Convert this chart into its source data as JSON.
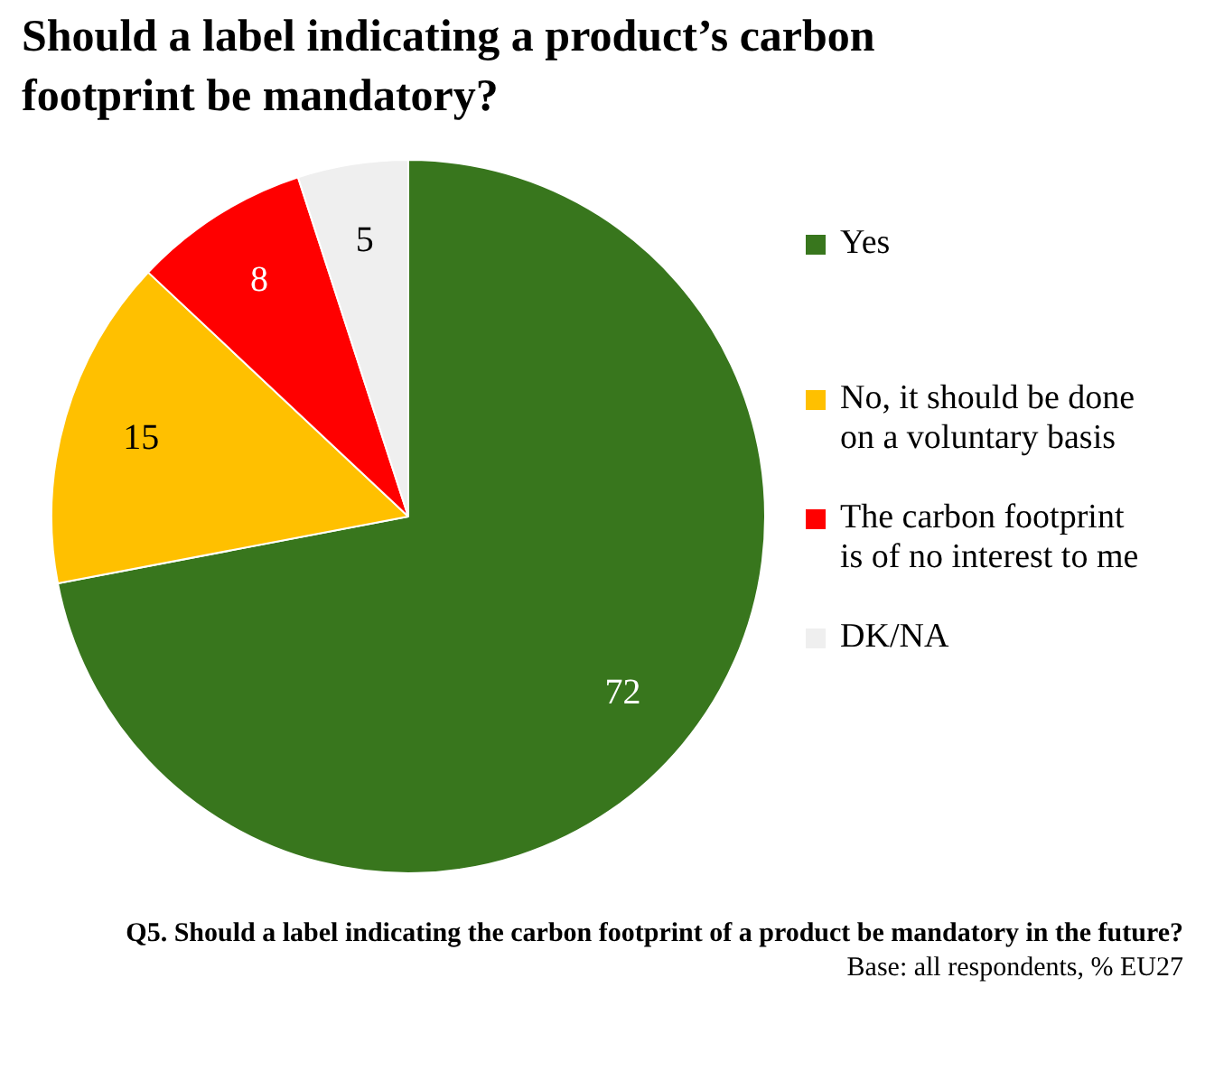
{
  "chart_data": {
    "type": "pie",
    "title": "Should a label indicating a product’s carbon footprint be mandatory?",
    "categories": [
      "Yes",
      "No, it should be done on a voluntary basis",
      "The carbon footprint is of no interest to me",
      "DK/NA"
    ],
    "values": [
      72,
      15,
      8,
      5
    ],
    "colors": [
      "#38761d",
      "#ffc000",
      "#ff0000",
      "#efefef"
    ],
    "data_labels": true,
    "legend": "right",
    "annotations": [
      "Q5. Should a label indicating the carbon footprint of a product be mandatory in the future?",
      "Base: all respondents, % EU27"
    ]
  }
}
